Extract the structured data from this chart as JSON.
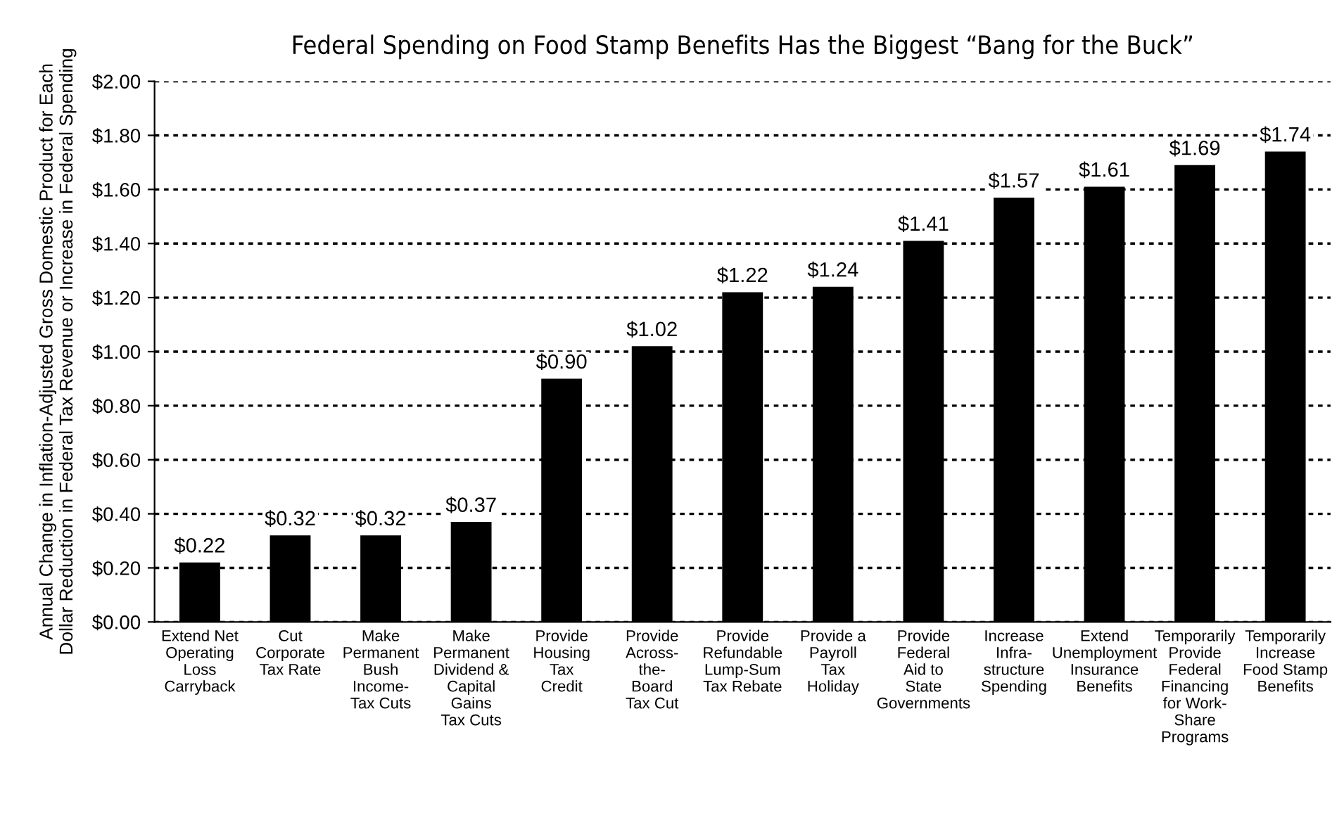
{
  "chart_data": {
    "type": "bar",
    "title": "Federal Spending on Food Stamp Benefits Has the Biggest “Bang for the Buck”",
    "ylabel": "Annual Change in Inflation-Adjusted Gross Domestic Product for Each\nDollar Reduction in Federal Tax Revenue or Increase in Federal Spending",
    "categories": [
      "Extend Net\nOperating\nLoss\nCarryback",
      "Cut\nCorporate\nTax Rate",
      "Make\nPermanent\nBush\nIncome-\nTax Cuts",
      "Make\nPermanent\nDividend &\nCapital\nGains\nTax Cuts",
      "Provide\nHousing\nTax\nCredit",
      "Provide\nAcross-\nthe-\nBoard\nTax Cut",
      "Provide\nRefundable\nLump-Sum\nTax Rebate",
      "Provide a\nPayroll\nTax\nHoliday",
      "Provide\nFederal\nAid to\nState\nGovernments",
      "Increase\nInfra-\nstructure\nSpending",
      "Extend\nUnemployment\nInsurance\nBenefits",
      "Temporarily\nProvide\nFederal\nFinancing\nfor Work-\nShare\nPrograms",
      "Temporarily\nIncrease\nFood Stamp\nBenefits"
    ],
    "values": [
      0.22,
      0.32,
      0.32,
      0.37,
      0.9,
      1.02,
      1.22,
      1.24,
      1.41,
      1.57,
      1.61,
      1.69,
      1.74
    ],
    "value_labels": [
      "$0.22",
      "$0.32",
      "$0.32",
      "$0.37",
      "$0.90",
      "$1.02",
      "$1.22",
      "$1.24",
      "$1.41",
      "$1.57",
      "$1.61",
      "$1.69",
      "$1.74"
    ],
    "color": "#000000",
    "ylim": [
      0,
      2
    ],
    "yticks": [
      {
        "value": 0,
        "label": "$0.00"
      },
      {
        "value": 0.2,
        "label": "$0.20"
      },
      {
        "value": 0.4,
        "label": "$0.40"
      },
      {
        "value": 0.6,
        "label": "$0.60"
      },
      {
        "value": 0.8,
        "label": "$0.80"
      },
      {
        "value": 1.0,
        "label": "$1.00"
      },
      {
        "value": 1.2,
        "label": "$1.20"
      },
      {
        "value": 1.4,
        "label": "$1.40"
      },
      {
        "value": 1.6,
        "label": "$1.60"
      },
      {
        "value": 1.8,
        "label": "$1.80"
      },
      {
        "value": 2.0,
        "label": "$2.00"
      }
    ],
    "grid": "y",
    "legend": false
  }
}
